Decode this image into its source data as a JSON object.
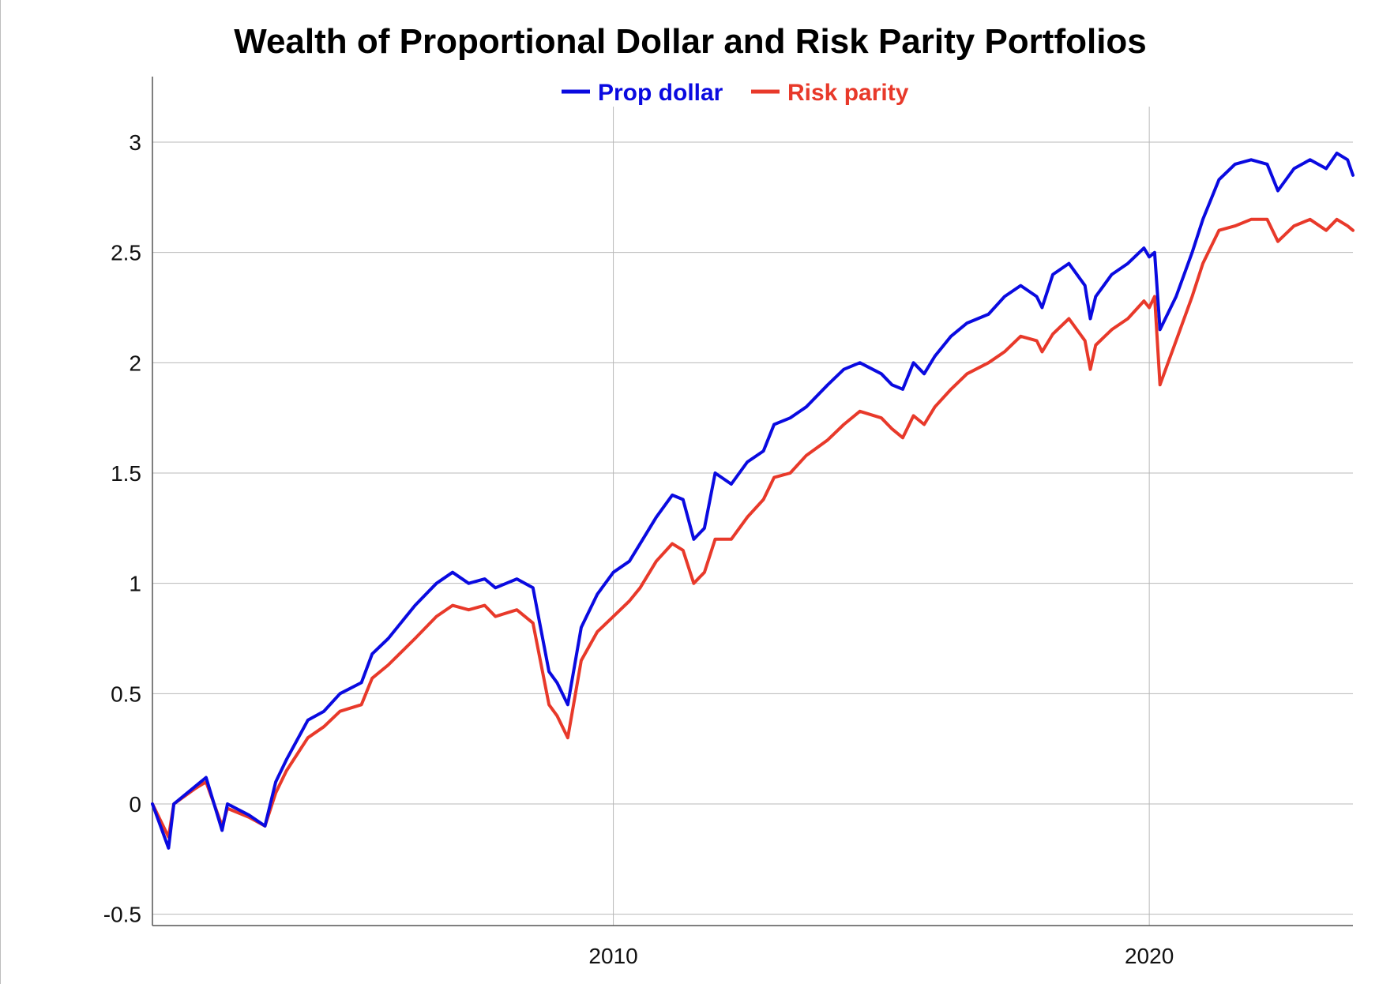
{
  "chart_data": {
    "type": "line",
    "title": "Wealth of Proportional Dollar and Risk Parity Portfolios",
    "xlabel": "",
    "ylabel": "",
    "x_ticks": [
      "2010",
      "2020"
    ],
    "x_tick_values": [
      2010,
      2020
    ],
    "xlim": [
      2001.4,
      2023.8
    ],
    "y_ticks": [
      "-0.5",
      "0",
      "0.5",
      "1",
      "1.5",
      "2",
      "2.5",
      "3"
    ],
    "y_tick_values": [
      -0.5,
      0,
      0.5,
      1,
      1.5,
      2,
      2.5,
      3
    ],
    "ylim": [
      -0.55,
      3.3
    ],
    "grid": true,
    "legend_position": "top-center",
    "colors": {
      "prop_dollar": "#0a0ae0",
      "risk_parity": "#e8392a"
    },
    "series": [
      {
        "name": "Prop dollar",
        "x": [
          2001.4,
          2001.7,
          2001.8,
          2002.2,
          2002.4,
          2002.7,
          2002.8,
          2003.2,
          2003.5,
          2003.7,
          2003.9,
          2004.3,
          2004.6,
          2004.9,
          2005.3,
          2005.5,
          2005.8,
          2006.3,
          2006.7,
          2007.0,
          2007.3,
          2007.6,
          2007.8,
          2008.2,
          2008.5,
          2008.8,
          2008.95,
          2009.15,
          2009.4,
          2009.7,
          2010.0,
          2010.3,
          2010.5,
          2010.8,
          2011.1,
          2011.3,
          2011.5,
          2011.7,
          2011.9,
          2012.2,
          2012.5,
          2012.8,
          2013.0,
          2013.3,
          2013.6,
          2014.0,
          2014.3,
          2014.6,
          2015.0,
          2015.2,
          2015.4,
          2015.6,
          2015.8,
          2016.0,
          2016.3,
          2016.6,
          2017.0,
          2017.3,
          2017.6,
          2017.9,
          2018.0,
          2018.2,
          2018.5,
          2018.8,
          2018.9,
          2019.0,
          2019.3,
          2019.6,
          2019.9,
          2020.0,
          2020.1,
          2020.2,
          2020.5,
          2020.8,
          2021.0,
          2021.3,
          2021.6,
          2021.9,
          2022.2,
          2022.4,
          2022.7,
          2023.0,
          2023.3,
          2023.5,
          2023.7,
          2023.8
        ],
        "values": [
          0.0,
          -0.2,
          0.0,
          0.08,
          0.12,
          -0.12,
          0.0,
          -0.05,
          -0.1,
          0.1,
          0.2,
          0.38,
          0.42,
          0.5,
          0.55,
          0.68,
          0.75,
          0.9,
          1.0,
          1.05,
          1.0,
          1.02,
          0.98,
          1.02,
          0.98,
          0.6,
          0.55,
          0.45,
          0.8,
          0.95,
          1.05,
          1.1,
          1.18,
          1.3,
          1.4,
          1.38,
          1.2,
          1.25,
          1.5,
          1.45,
          1.55,
          1.6,
          1.72,
          1.75,
          1.8,
          1.9,
          1.97,
          2.0,
          1.95,
          1.9,
          1.88,
          2.0,
          1.95,
          2.03,
          2.12,
          2.18,
          2.22,
          2.3,
          2.35,
          2.3,
          2.25,
          2.4,
          2.45,
          2.35,
          2.2,
          2.3,
          2.4,
          2.45,
          2.52,
          2.48,
          2.5,
          2.15,
          2.3,
          2.5,
          2.65,
          2.83,
          2.9,
          2.92,
          2.9,
          2.78,
          2.88,
          2.92,
          2.88,
          2.95,
          2.92,
          2.85
        ]
      },
      {
        "name": "Risk parity",
        "x": [
          2001.4,
          2001.7,
          2001.8,
          2002.2,
          2002.4,
          2002.7,
          2002.8,
          2003.2,
          2003.5,
          2003.7,
          2003.9,
          2004.3,
          2004.6,
          2004.9,
          2005.3,
          2005.5,
          2005.8,
          2006.3,
          2006.7,
          2007.0,
          2007.3,
          2007.6,
          2007.8,
          2008.2,
          2008.5,
          2008.8,
          2008.95,
          2009.15,
          2009.4,
          2009.7,
          2010.0,
          2010.3,
          2010.5,
          2010.8,
          2011.1,
          2011.3,
          2011.5,
          2011.7,
          2011.9,
          2012.2,
          2012.5,
          2012.8,
          2013.0,
          2013.3,
          2013.6,
          2014.0,
          2014.3,
          2014.6,
          2015.0,
          2015.2,
          2015.4,
          2015.6,
          2015.8,
          2016.0,
          2016.3,
          2016.6,
          2017.0,
          2017.3,
          2017.6,
          2017.9,
          2018.0,
          2018.2,
          2018.5,
          2018.8,
          2018.9,
          2019.0,
          2019.3,
          2019.6,
          2019.9,
          2020.0,
          2020.1,
          2020.2,
          2020.5,
          2020.8,
          2021.0,
          2021.3,
          2021.6,
          2021.9,
          2022.2,
          2022.4,
          2022.7,
          2023.0,
          2023.3,
          2023.5,
          2023.7,
          2023.8
        ],
        "values": [
          0.0,
          -0.15,
          0.0,
          0.07,
          0.1,
          -0.1,
          -0.02,
          -0.06,
          -0.1,
          0.05,
          0.15,
          0.3,
          0.35,
          0.42,
          0.45,
          0.57,
          0.63,
          0.75,
          0.85,
          0.9,
          0.88,
          0.9,
          0.85,
          0.88,
          0.82,
          0.45,
          0.4,
          0.3,
          0.65,
          0.78,
          0.85,
          0.92,
          0.98,
          1.1,
          1.18,
          1.15,
          1.0,
          1.05,
          1.2,
          1.2,
          1.3,
          1.38,
          1.48,
          1.5,
          1.58,
          1.65,
          1.72,
          1.78,
          1.75,
          1.7,
          1.66,
          1.76,
          1.72,
          1.8,
          1.88,
          1.95,
          2.0,
          2.05,
          2.12,
          2.1,
          2.05,
          2.13,
          2.2,
          2.1,
          1.97,
          2.08,
          2.15,
          2.2,
          2.28,
          2.25,
          2.3,
          1.9,
          2.1,
          2.3,
          2.45,
          2.6,
          2.62,
          2.65,
          2.65,
          2.55,
          2.62,
          2.65,
          2.6,
          2.65,
          2.62,
          2.6
        ]
      }
    ]
  }
}
